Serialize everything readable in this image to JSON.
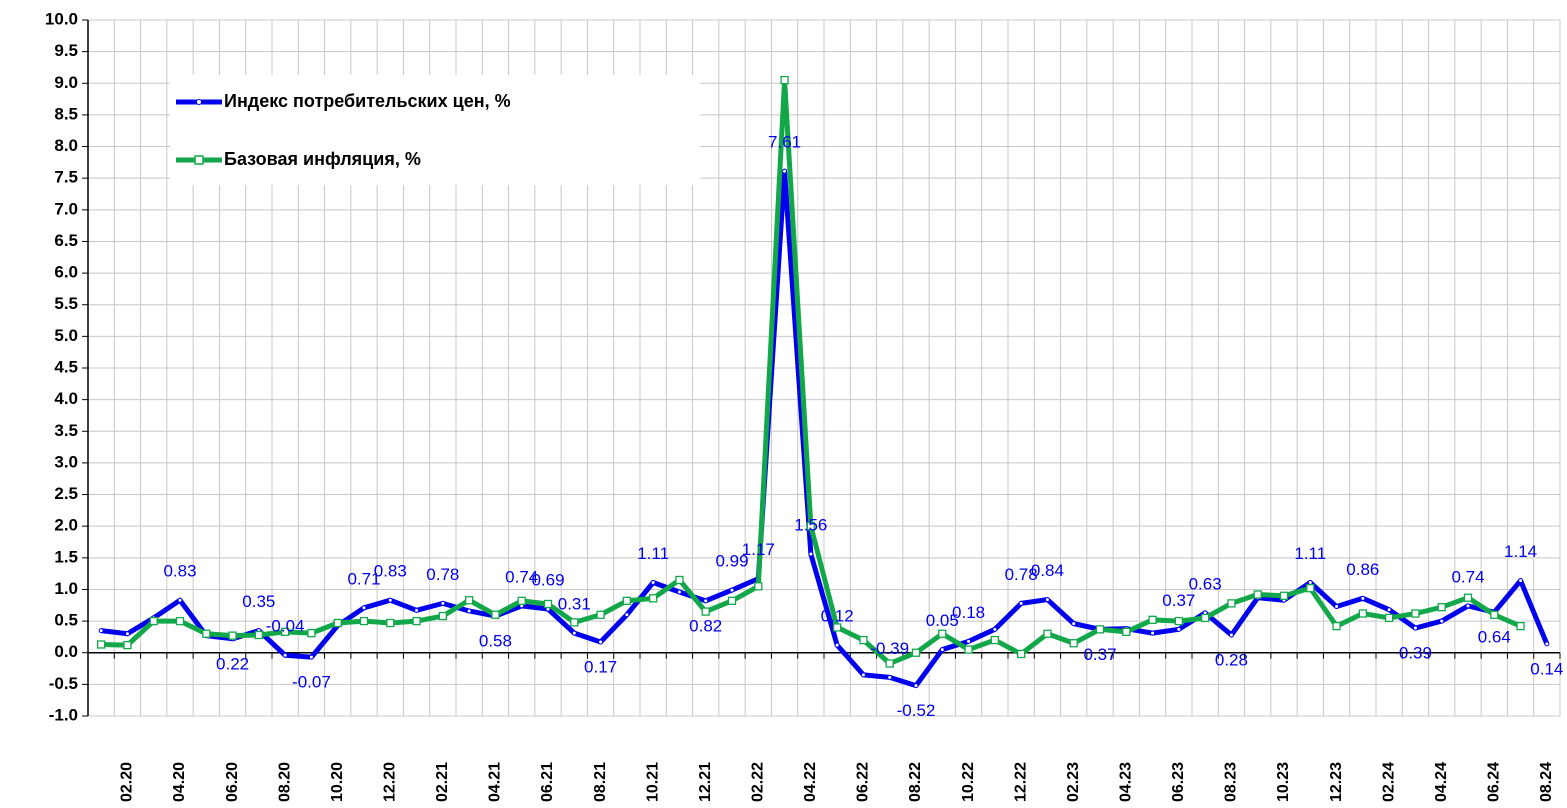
{
  "chart_data": {
    "type": "line",
    "categories": [
      null,
      "02.20",
      null,
      "04.20",
      null,
      "06.20",
      null,
      "08.20",
      null,
      "10.20",
      null,
      "12.20",
      null,
      "02.21",
      null,
      "04.21",
      null,
      "06.21",
      null,
      "08.21",
      null,
      "10.21",
      null,
      "12.21",
      null,
      "02.22",
      null,
      "04.22",
      null,
      "06.22",
      null,
      "08.22",
      null,
      "10.22",
      null,
      "12.22",
      null,
      "02.23",
      null,
      "04.23",
      null,
      "06.23",
      null,
      "08.23",
      null,
      "10.23",
      null,
      "12.23",
      null,
      "02.24",
      null,
      "04.24",
      null,
      "06.24",
      null,
      "08.24"
    ],
    "series": [
      {
        "name": "Индекс потребительских цен, %",
        "color": "#0000ee",
        "values": [
          0.35,
          0.3,
          0.55,
          0.83,
          0.27,
          0.22,
          0.35,
          -0.04,
          -0.07,
          0.43,
          0.71,
          0.83,
          0.67,
          0.78,
          0.66,
          0.58,
          0.74,
          0.69,
          0.31,
          0.17,
          0.6,
          1.11,
          0.96,
          0.82,
          0.99,
          1.17,
          7.61,
          1.56,
          0.12,
          -0.35,
          -0.39,
          -0.52,
          0.05,
          0.18,
          0.37,
          0.78,
          0.84,
          0.46,
          0.37,
          0.38,
          0.31,
          0.37,
          0.63,
          0.28,
          0.87,
          0.83,
          1.11,
          0.73,
          0.86,
          0.68,
          0.39,
          0.5,
          0.74,
          0.64,
          1.14,
          0.14
        ],
        "value_labels": [
          null,
          null,
          null,
          "0.83",
          null,
          "0.22",
          "0.35",
          "-0.04",
          "-0.07",
          null,
          "0.71",
          "0.83",
          null,
          "0.78",
          null,
          "0.58",
          "0.74",
          "0.69",
          "0.31",
          "0.17",
          null,
          "1.11",
          null,
          "0.82",
          "0.99",
          "1.17",
          "7.61",
          "1.56",
          "0.12",
          null,
          "-0.39",
          "-0.52",
          "0.05",
          "0.18",
          null,
          "0.78",
          "0.84",
          null,
          "0.37",
          null,
          null,
          "0.37",
          "0.63",
          "0.28",
          null,
          null,
          "1.11",
          null,
          "0.86",
          null,
          "0.39",
          null,
          "0.74",
          "0.64",
          "1.14",
          "0.14"
        ]
      },
      {
        "name": "Базовая инфляция, %",
        "color": "#12a84a",
        "values": [
          0.13,
          0.12,
          0.5,
          0.5,
          0.3,
          0.27,
          0.28,
          0.33,
          0.31,
          0.47,
          0.5,
          0.47,
          0.5,
          0.58,
          0.83,
          0.6,
          0.82,
          0.77,
          0.48,
          0.6,
          0.82,
          0.86,
          1.15,
          0.65,
          0.82,
          1.05,
          9.05,
          2.0,
          0.4,
          0.2,
          -0.17,
          0.0,
          0.3,
          0.05,
          0.2,
          -0.02,
          0.3,
          0.15,
          0.37,
          0.33,
          0.52,
          0.5,
          0.55,
          0.78,
          0.92,
          0.9,
          1.02,
          0.42,
          0.62,
          0.55,
          0.62,
          0.72,
          0.87,
          0.6,
          0.42,
          null
        ]
      }
    ],
    "ylim": [
      -1,
      10
    ],
    "yticks": [
      {
        "value": -1,
        "label": "-1.0"
      },
      -0.5,
      {
        "value": 0,
        "label": "0.0"
      },
      0.5,
      {
        "value": 1,
        "label": "1.0"
      },
      1.5,
      {
        "value": 2,
        "label": "2.0"
      },
      2.5,
      {
        "value": 3,
        "label": "3.0"
      },
      3.5,
      {
        "value": 4,
        "label": "4.0"
      },
      4.5,
      {
        "value": 5,
        "label": "5.0"
      },
      5.5,
      {
        "value": 6,
        "label": "6.0"
      },
      6.5,
      {
        "value": 7,
        "label": "7.0"
      },
      7.5,
      {
        "value": 8,
        "label": "8.0"
      },
      8.5,
      {
        "value": 9,
        "label": "9.0"
      },
      9.5,
      {
        "value": 10,
        "label": "10.0"
      }
    ],
    "grid": true
  }
}
